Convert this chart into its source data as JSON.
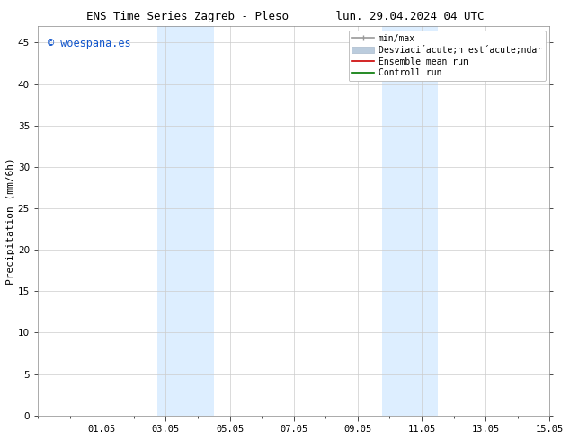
{
  "title": "ENS Time Series Zagreb - Pleso       lun. 29.04.2024 04 UTC",
  "ylabel": "Precipitation (mm/6h)",
  "watermark": "© woespana.es",
  "watermark_color": "#1155cc",
  "ylim": [
    0,
    47
  ],
  "yticks": [
    0,
    5,
    10,
    15,
    20,
    25,
    30,
    35,
    40,
    45
  ],
  "xtick_labels": [
    "",
    "01.05",
    "",
    "03.05",
    "",
    "05.05",
    "",
    "07.05",
    "",
    "09.05",
    "",
    "11.05",
    "",
    "13.05",
    "",
    "15.05"
  ],
  "xtick_positions": [
    0,
    2,
    4,
    6,
    8,
    10,
    12,
    14,
    16,
    18,
    20,
    22,
    24,
    26,
    28,
    30
  ],
  "xlim": [
    0,
    32
  ],
  "shaded_regions": [
    {
      "xmin": 7.5,
      "xmax": 11.0,
      "color": "#ddeeff"
    },
    {
      "xmin": 21.5,
      "xmax": 25.0,
      "color": "#ddeeff"
    }
  ],
  "legend_labels": [
    "min/max",
    "Desviaci´acute;n est´acute;ndar",
    "Ensemble mean run",
    "Controll run"
  ],
  "legend_colors": [
    "#999999",
    "#bbccdd",
    "#cc0000",
    "#007700"
  ],
  "bg_color": "#ffffff",
  "grid_color": "#cccccc",
  "title_fontsize": 9,
  "label_fontsize": 8,
  "tick_fontsize": 7.5,
  "legend_fontsize": 7
}
